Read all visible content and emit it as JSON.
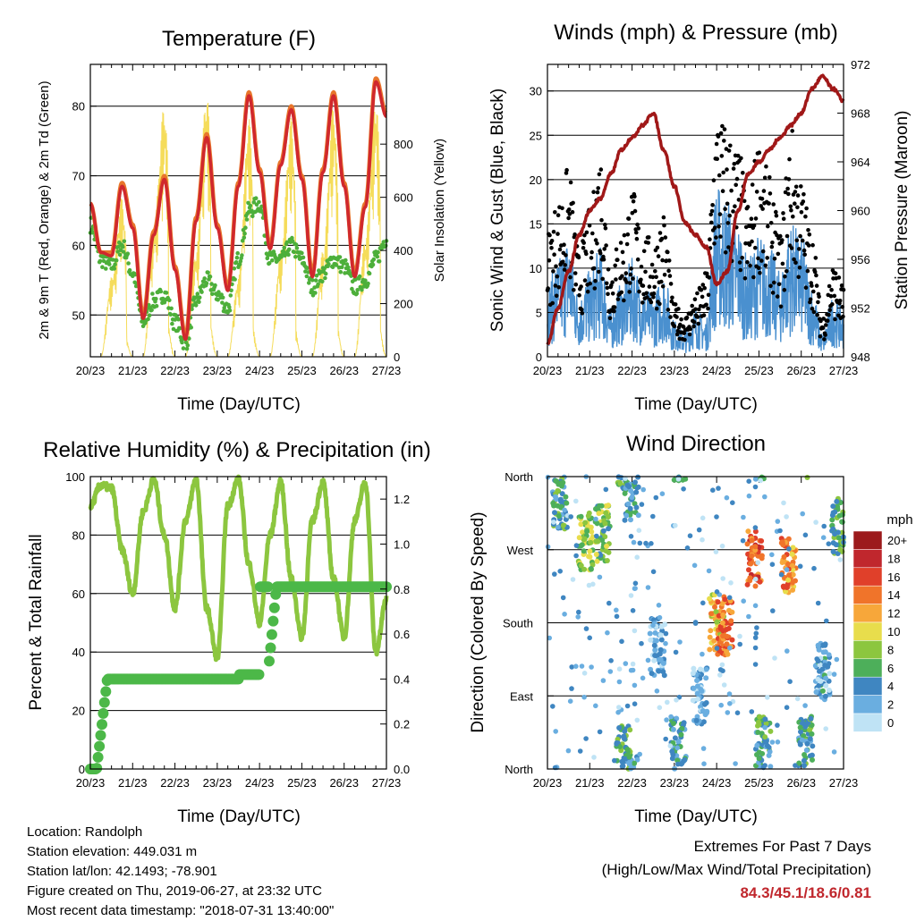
{
  "colors": {
    "temp2m": "#e8762b",
    "temp9m": "#d0282d",
    "dewpoint": "#4daf3a",
    "solar": "#f5dc5a",
    "wind": "#4a90cf",
    "gust": "#000000",
    "pressure": "#a01818",
    "rh": "#8cc63f",
    "precip": "#4cb848"
  },
  "day_ticks": [
    "20/23",
    "21/23",
    "22/23",
    "23/23",
    "24/23",
    "25/23",
    "26/23",
    "27/23"
  ],
  "info": {
    "location": "Location: Randolph",
    "elevation": "Station elevation: 449.031 m",
    "latlon": "Station lat/lon: 42.1493; -78.901",
    "created": "Figure created on Thu, 2019-06-27, at 23:32 UTC",
    "recent": "Most recent data timestamp: \"2018-07-31 13:40:00\""
  },
  "extremes": {
    "title": "Extremes For Past 7 Days",
    "subtitle": "(High/Low/Max Wind/Total Precipitation)",
    "values": "84.3/45.1/18.6/0.81"
  },
  "chart_data": [
    {
      "id": "temperature",
      "type": "line",
      "title": "Temperature (F)",
      "xlabel": "Time (Day/UTC)",
      "ylabel": "2m & 9m T (Red, Orange) & 2m Td (Green)",
      "y2label": "Solar Insolation (Yellow)",
      "xlim": [
        0,
        7
      ],
      "ylim": [
        44,
        86
      ],
      "y2lim": [
        0,
        1100
      ],
      "yticks": [
        50,
        60,
        70,
        80
      ],
      "y2ticks": [
        0,
        200,
        400,
        600,
        800
      ],
      "x": [
        0,
        0.25,
        0.5,
        0.75,
        1,
        1.25,
        1.5,
        1.75,
        2,
        2.25,
        2.5,
        2.75,
        3,
        3.25,
        3.5,
        3.75,
        4,
        4.25,
        4.5,
        4.75,
        5,
        5.25,
        5.5,
        5.75,
        6,
        6.25,
        6.5,
        6.75,
        7
      ],
      "series": [
        {
          "name": "2m T",
          "values": [
            66,
            59,
            59,
            69,
            63,
            50,
            62,
            70,
            57,
            47,
            64,
            76,
            63,
            54,
            69,
            82,
            71,
            60,
            72,
            80,
            70,
            56,
            71,
            82,
            69,
            56,
            66,
            84,
            79
          ]
        },
        {
          "name": "9m T",
          "values": [
            66,
            59,
            58.5,
            68.5,
            62.5,
            49.5,
            61.5,
            69.5,
            56.5,
            46.5,
            63.5,
            75.5,
            62.5,
            53.5,
            68.5,
            81.5,
            70.5,
            59.5,
            71.5,
            79.5,
            69.5,
            55.5,
            70.5,
            81.5,
            68.5,
            55.5,
            65.5,
            83.5,
            78.5
          ]
        },
        {
          "name": "2m Td",
          "values": [
            63,
            58,
            57,
            60,
            56,
            49,
            52,
            53,
            49,
            46,
            52,
            55,
            53,
            51,
            58,
            65,
            66,
            58,
            58,
            60,
            58,
            54,
            56,
            58,
            57,
            54,
            55,
            58,
            61
          ]
        },
        {
          "name": "Solar Insolation",
          "axis": "y2",
          "values": [
            0,
            0,
            300,
            600,
            0,
            0,
            500,
            950,
            0,
            0,
            400,
            1000,
            0,
            0,
            300,
            900,
            0,
            0,
            400,
            900,
            0,
            0,
            400,
            950,
            0,
            0,
            450,
            980,
            0
          ]
        }
      ]
    },
    {
      "id": "winds",
      "type": "scatter",
      "title": "Winds (mph) & Pressure (mb)",
      "xlabel": "Time (Day/UTC)",
      "ylabel": "Sonic Wind & Gust (Blue, Black)",
      "y2label": "Station Pressure (Maroon)",
      "xlim": [
        0,
        7
      ],
      "ylim": [
        0,
        33
      ],
      "y2lim": [
        948,
        972
      ],
      "yticks": [
        0,
        5,
        10,
        15,
        20,
        25,
        30
      ],
      "y2ticks": [
        948,
        952,
        956,
        960,
        964,
        968,
        972
      ],
      "x": [
        0,
        0.25,
        0.5,
        0.75,
        1,
        1.25,
        1.5,
        1.75,
        2,
        2.25,
        2.5,
        2.75,
        3,
        3.25,
        3.5,
        3.75,
        4,
        4.25,
        4.5,
        4.75,
        5,
        5.25,
        5.5,
        5.75,
        6,
        6.25,
        6.5,
        6.75,
        7
      ],
      "series": [
        {
          "name": "Sonic Wind",
          "values": [
            6,
            8,
            10,
            5,
            7,
            9,
            4,
            6,
            8,
            6,
            5,
            7,
            3,
            2,
            4,
            3,
            14,
            13,
            11,
            8,
            10,
            9,
            7,
            11,
            10,
            6,
            2,
            5,
            4
          ]
        },
        {
          "name": "Gust",
          "values": [
            12,
            15,
            18,
            10,
            14,
            20,
            9,
            12,
            16,
            12,
            11,
            14,
            5,
            4,
            6,
            8,
            24,
            22,
            20,
            15,
            21,
            17,
            12,
            22,
            17,
            12,
            4,
            9,
            7
          ]
        },
        {
          "name": "Station Pressure",
          "axis": "y2",
          "values": [
            949,
            952,
            955,
            958,
            960,
            961,
            963,
            965,
            966,
            967,
            968,
            965,
            962,
            959,
            958,
            957,
            954,
            955,
            960,
            963,
            964,
            965,
            966,
            967,
            968,
            970,
            971,
            970,
            969
          ]
        }
      ]
    },
    {
      "id": "humidity",
      "type": "line",
      "title": "Relative Humidity (%) & Precipitation (in)",
      "xlabel": "Time (Day/UTC)",
      "ylabel": "Percent & Total Rainfall",
      "xlim": [
        0,
        7
      ],
      "ylim": [
        0,
        100
      ],
      "y2lim": [
        0,
        1.3
      ],
      "yticks": [
        0,
        20,
        40,
        60,
        80,
        100
      ],
      "y2ticks": [
        0.0,
        0.2,
        0.4,
        0.6,
        0.8,
        1.0,
        1.2
      ],
      "x": [
        0,
        0.25,
        0.5,
        0.75,
        1,
        1.25,
        1.5,
        1.75,
        2,
        2.25,
        2.5,
        2.75,
        3,
        3.25,
        3.5,
        3.75,
        4,
        4.25,
        4.5,
        4.75,
        5,
        5.25,
        5.5,
        5.75,
        6,
        6.25,
        6.5,
        6.75,
        7
      ],
      "series": [
        {
          "name": "Relative Humidity",
          "values": [
            90,
            97,
            96,
            75,
            60,
            88,
            99,
            80,
            55,
            85,
            99,
            55,
            38,
            90,
            99,
            70,
            50,
            80,
            98,
            65,
            45,
            85,
            98,
            65,
            45,
            85,
            98,
            40,
            58
          ]
        },
        {
          "name": "Total Precipitation",
          "axis": "y2",
          "values": [
            0,
            0,
            0.4,
            0.4,
            0.4,
            0.4,
            0.4,
            0.4,
            0.4,
            0.4,
            0.4,
            0.4,
            0.4,
            0.4,
            0.4,
            0.42,
            0.42,
            0.81,
            0.81,
            0.81,
            0.81,
            0.81,
            0.81,
            0.81,
            0.81,
            0.81,
            0.81,
            0.81,
            0.81
          ]
        }
      ]
    },
    {
      "id": "direction",
      "type": "scatter",
      "title": "Wind Direction",
      "xlabel": "Time (Day/UTC)",
      "ylabel": "Direction (Colored By Speed)",
      "xlim": [
        0,
        7
      ],
      "ylim": [
        0,
        360
      ],
      "ytick_labels": [
        "North",
        "East",
        "South",
        "West",
        "North"
      ],
      "legend_title": "mph",
      "legend_labels": [
        "20+",
        "18",
        "16",
        "14",
        "12",
        "10",
        "8",
        "6",
        "4",
        "2",
        "0"
      ],
      "legend_colors": [
        "#9c1a1c",
        "#c0272d",
        "#e0402a",
        "#f0742a",
        "#f7a73a",
        "#e8dd4c",
        "#8cc63f",
        "#4daf5a",
        "#3f86c1",
        "#6aaee0",
        "#bfe3f5"
      ],
      "clusters": [
        {
          "x": 0.3,
          "dir": 330,
          "speed": 5
        },
        {
          "x": 0.9,
          "dir": 280,
          "speed": 8
        },
        {
          "x": 1.3,
          "dir": 290,
          "speed": 7
        },
        {
          "x": 1.8,
          "dir": 20,
          "speed": 6
        },
        {
          "x": 2.0,
          "dir": 340,
          "speed": 4
        },
        {
          "x": 2.6,
          "dir": 150,
          "speed": 2
        },
        {
          "x": 3.1,
          "dir": 30,
          "speed": 4
        },
        {
          "x": 3.6,
          "dir": 90,
          "speed": 2
        },
        {
          "x": 4.0,
          "dir": 180,
          "speed": 11
        },
        {
          "x": 4.2,
          "dir": 175,
          "speed": 14
        },
        {
          "x": 4.9,
          "dir": 260,
          "speed": 15
        },
        {
          "x": 5.1,
          "dir": 30,
          "speed": 5
        },
        {
          "x": 5.7,
          "dir": 250,
          "speed": 13
        },
        {
          "x": 6.1,
          "dir": 30,
          "speed": 5
        },
        {
          "x": 6.5,
          "dir": 120,
          "speed": 3
        },
        {
          "x": 6.9,
          "dir": 300,
          "speed": 6
        }
      ]
    }
  ]
}
